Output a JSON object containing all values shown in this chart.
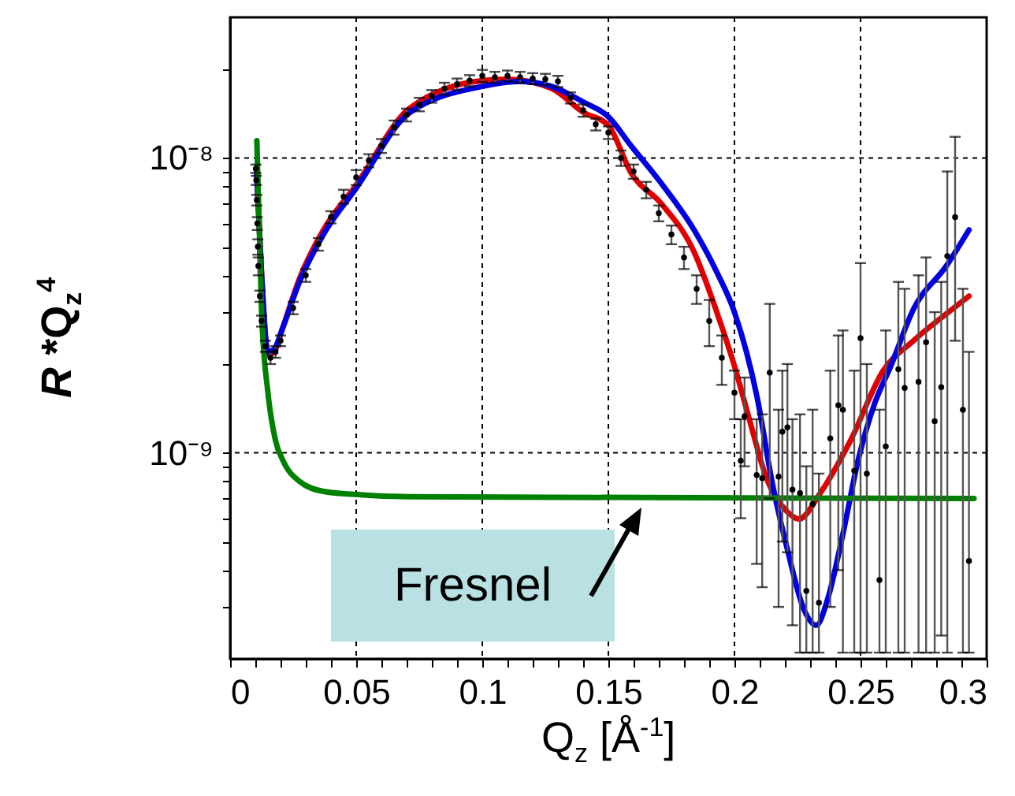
{
  "chart_data": {
    "type": "line",
    "xlabel": "Q$_{z}$ [Å$^{-1}$]",
    "ylabel": "R *Q$_{z}$$^{4}$",
    "log": "y",
    "grid": true,
    "line_style": "solid",
    "xlim": [
      0,
      0.3
    ],
    "ylim": [
      2e-10,
      3e-08
    ],
    "xticks": [
      0,
      {
        "value": 0.01,
        "label": null
      },
      {
        "value": 0.02,
        "label": null
      },
      {
        "value": 0.03,
        "label": null
      },
      {
        "value": 0.04,
        "label": null
      },
      0.05,
      {
        "value": 0.06,
        "label": null
      },
      {
        "value": 0.07,
        "label": null
      },
      {
        "value": 0.08,
        "label": null
      },
      {
        "value": 0.09,
        "label": null
      },
      0.1,
      {
        "value": 0.11,
        "label": null
      },
      {
        "value": 0.12,
        "label": null
      },
      {
        "value": 0.13,
        "label": null
      },
      {
        "value": 0.14,
        "label": null
      },
      0.15,
      {
        "value": 0.16,
        "label": null
      },
      {
        "value": 0.17,
        "label": null
      },
      {
        "value": 0.18,
        "label": null
      },
      {
        "value": 0.19,
        "label": null
      },
      0.2,
      {
        "value": 0.21,
        "label": null
      },
      {
        "value": 0.22,
        "label": null
      },
      {
        "value": 0.23,
        "label": null
      },
      {
        "value": 0.24,
        "label": null
      },
      0.25,
      {
        "value": 0.26,
        "label": null
      },
      {
        "value": 0.27,
        "label": null
      },
      {
        "value": 0.28,
        "label": null
      },
      {
        "value": 0.29,
        "label": null
      },
      0.3
    ],
    "yticks": [
      {
        "value": 3e-10,
        "label": null
      },
      {
        "value": 4e-10,
        "label": null
      },
      {
        "value": 5e-10,
        "label": null
      },
      {
        "value": 6e-10,
        "label": null
      },
      {
        "value": 7e-10,
        "label": null
      },
      {
        "value": 8e-10,
        "label": null
      },
      {
        "value": 9e-10,
        "label": null
      },
      {
        "value": 1e-09,
        "label": "10⁻⁹"
      },
      {
        "value": 2e-09,
        "label": null
      },
      {
        "value": 3e-09,
        "label": null
      },
      {
        "value": 4e-09,
        "label": null
      },
      {
        "value": 5e-09,
        "label": null
      },
      {
        "value": 6e-09,
        "label": null
      },
      {
        "value": 7e-09,
        "label": null
      },
      {
        "value": 8e-09,
        "label": null
      },
      {
        "value": 9e-09,
        "label": null
      },
      {
        "value": 1e-08,
        "label": "10⁻⁸"
      },
      {
        "value": 2e-08,
        "label": null
      }
    ],
    "annotations": [
      "Fresnel"
    ],
    "series": [
      {
        "type": "scatter",
        "color": "#000000",
        "marker": "circle",
        "x": [
          0.0102,
          0.0104,
          0.0106,
          0.0108,
          0.011,
          0.0112,
          0.0118,
          0.0125,
          0.014,
          0.016,
          0.018,
          0.02,
          0.025,
          0.03,
          0.035,
          0.04,
          0.045,
          0.05,
          0.055,
          0.06,
          0.065,
          0.07,
          0.075,
          0.08,
          0.085,
          0.09,
          0.095,
          0.1,
          0.105,
          0.11,
          0.115,
          0.12,
          0.125,
          0.13,
          0.135,
          0.14,
          0.145,
          0.15,
          0.155,
          0.16,
          0.165,
          0.17,
          0.175,
          0.18,
          0.185,
          0.19,
          0.195,
          0.2,
          0.2025,
          0.204,
          0.2088,
          0.211,
          0.214,
          0.2175,
          0.219,
          0.221,
          0.223,
          0.226,
          0.2285,
          0.231,
          0.2335,
          0.238,
          0.2412,
          0.243,
          0.2475,
          0.25,
          0.2525,
          0.2575,
          0.26,
          0.265,
          0.2675,
          0.273,
          0.276,
          0.2794,
          0.282,
          0.2844,
          0.2875,
          0.2906,
          0.293
        ],
        "values": [
          9.2e-09,
          8.4e-09,
          7.2e-09,
          6e-09,
          5e-09,
          4.3e-09,
          3.4e-09,
          2.8e-09,
          2.3e-09,
          2.1e-09,
          2.2e-09,
          2.4e-09,
          3.1e-09,
          4e-09,
          5.1e-09,
          6.3e-09,
          7.4e-09,
          8.6e-09,
          9.8e-09,
          1.1e-08,
          1.27e-08,
          1.4e-08,
          1.52e-08,
          1.62e-08,
          1.72e-08,
          1.78e-08,
          1.83e-08,
          1.9e-08,
          1.88e-08,
          1.9e-08,
          1.88e-08,
          1.86e-08,
          1.85e-08,
          1.82e-08,
          1.6e-08,
          1.45e-08,
          1.3e-08,
          1.22e-08,
          1e-08,
          9e-09,
          7.8e-09,
          6.5e-09,
          5.5e-09,
          4.6e-09,
          3.6e-09,
          2.8e-09,
          2.1e-09,
          1.6e-09,
          9.4e-10,
          1.33e-09,
          8.4e-10,
          8.2e-10,
          1.87e-09,
          8.3e-10,
          1.18e-09,
          1.22e-09,
          7.5e-10,
          7.3e-10,
          3.4e-10,
          6.7e-10,
          3.1e-10,
          1.12e-09,
          1.45e-09,
          1.4e-09,
          8.7e-10,
          2.45e-09,
          8.5e-10,
          3.7e-10,
          1.05e-09,
          1.92e-09,
          1.66e-09,
          1.74e-09,
          2.37e-09,
          1.28e-09,
          1.67e-09,
          4.65e-09,
          6.3e-09,
          1.4e-09,
          4.3e-10
        ],
        "errors": [
          3e-10,
          3e-10,
          3e-10,
          3e-10,
          3e-10,
          3e-10,
          1.5e-10,
          1.2e-10,
          1e-10,
          1e-10,
          1e-10,
          1e-10,
          1.5e-10,
          2e-10,
          2.5e-10,
          3e-10,
          4e-10,
          5e-10,
          5e-10,
          6e-10,
          7e-10,
          7e-10,
          8e-10,
          8e-10,
          8e-10,
          8e-10,
          8e-10,
          9e-10,
          8e-10,
          8e-10,
          8e-10,
          8e-10,
          8e-10,
          8e-10,
          7e-10,
          7e-10,
          6e-10,
          6e-10,
          6e-10,
          5e-10,
          5e-10,
          4e-10,
          4e-10,
          4e-10,
          4e-10,
          5e-10,
          4e-10,
          3e-10,
          [
            6e-10,
            1.3e-09
          ],
          [
            9e-10,
            1.8e-09
          ],
          [
            4.2e-10,
            1.3e-09
          ],
          [
            3.5e-10,
            1.35e-09
          ],
          [
            7e-10,
            3.2e-09
          ],
          [
            3e-10,
            1.4e-09
          ],
          [
            5e-10,
            1.9e-09
          ],
          [
            4.6e-10,
            2e-09
          ],
          [
            2.6e-10,
            1.3e-09
          ],
          [
            2.1e-10,
            1.35e-09
          ],
          [
            2.1e-10,
            9e-10
          ],
          [
            2.1e-10,
            1.4e-09
          ],
          [
            2.1e-10,
            8.5e-10
          ],
          [
            3e-10,
            1.9e-09
          ],
          [
            4e-10,
            2.5e-09
          ],
          [
            2.1e-10,
            2.6e-09
          ],
          [
            2.1e-10,
            1.9e-09
          ],
          [
            2.1e-10,
            4.4e-09
          ],
          [
            2.1e-10,
            2e-09
          ],
          [
            2.1e-10,
            1.4e-09
          ],
          [
            2.1e-10,
            2.6e-09
          ],
          [
            2.1e-10,
            3.8e-09
          ],
          [
            2.1e-10,
            3.6e-09
          ],
          [
            2.1e-10,
            4e-09
          ],
          [
            2.1e-10,
            4.6e-09
          ],
          [
            2.1e-10,
            3e-09
          ],
          [
            2.4e-10,
            3.8e-09
          ],
          [
            2.1e-10,
            9e-09
          ],
          [
            2.4e-09,
            1.18e-08
          ],
          [
            2.1e-10,
            3.6e-09
          ],
          [
            2.1e-10,
            2.2e-09
          ]
        ]
      },
      {
        "type": "line",
        "color": "#e00000",
        "x": [
          0.0105,
          0.0125,
          0.015,
          0.0175,
          0.0205,
          0.0275,
          0.037,
          0.05,
          0.071,
          0.1,
          0.11,
          0.1275,
          0.14,
          0.15,
          0.159,
          0.171,
          0.184,
          0.193,
          0.2,
          0.206,
          0.2125,
          0.221,
          0.2256,
          0.234,
          0.246,
          0.259,
          0.271,
          0.284,
          0.293
        ],
        "values": [
          9e-09,
          4e-09,
          2.15e-09,
          2.2e-09,
          2.6e-09,
          3.9e-09,
          5.7e-09,
          8.1e-09,
          1.47e-08,
          1.83e-08,
          1.85e-08,
          1.72e-08,
          1.43e-08,
          1.29e-08,
          8.9e-09,
          7e-09,
          4.8e-09,
          3e-09,
          1.97e-09,
          1.29e-09,
          8.3e-10,
          6.3e-10,
          5.96e-10,
          7.3e-10,
          1.1e-09,
          1.9e-09,
          2.4e-09,
          2.96e-09,
          3.4e-09
        ]
      },
      {
        "type": "line",
        "color": "#0000e0",
        "x": [
          0.0105,
          0.0125,
          0.015,
          0.0175,
          0.0205,
          0.0275,
          0.037,
          0.05,
          0.071,
          0.1,
          0.115,
          0.1275,
          0.14,
          0.15,
          0.159,
          0.171,
          0.184,
          0.193,
          0.2,
          0.209,
          0.215,
          0.221,
          0.2275,
          0.2325,
          0.237,
          0.243,
          0.249,
          0.2556,
          0.262,
          0.271,
          0.284,
          0.293
        ],
        "values": [
          9e-09,
          4e-09,
          2.2e-09,
          2.25e-09,
          2.6e-09,
          3.8e-09,
          5.5e-09,
          7.9e-09,
          1.42e-08,
          1.75e-08,
          1.82e-08,
          1.75e-08,
          1.55e-08,
          1.38e-08,
          1.1e-08,
          8.2e-09,
          5.7e-09,
          4.1e-09,
          3e-09,
          1.54e-09,
          7.9e-10,
          4.7e-10,
          2.95e-10,
          2.6e-10,
          3.2e-10,
          5.3e-10,
          9.4e-10,
          1.47e-09,
          1.97e-09,
          3.07e-09,
          4.3e-09,
          5.7e-09
        ]
      },
      {
        "type": "line",
        "color": "#008000",
        "x": [
          0.0106,
          0.0125,
          0.015,
          0.018,
          0.021,
          0.0275,
          0.037,
          0.0525,
          0.071,
          0.295
        ],
        "values": [
          1.145e-08,
          2.96e-09,
          1.6e-09,
          1.1e-09,
          9.4e-10,
          8e-10,
          7.4e-10,
          7.2e-10,
          7.1e-10,
          7e-10
        ]
      }
    ]
  }
}
